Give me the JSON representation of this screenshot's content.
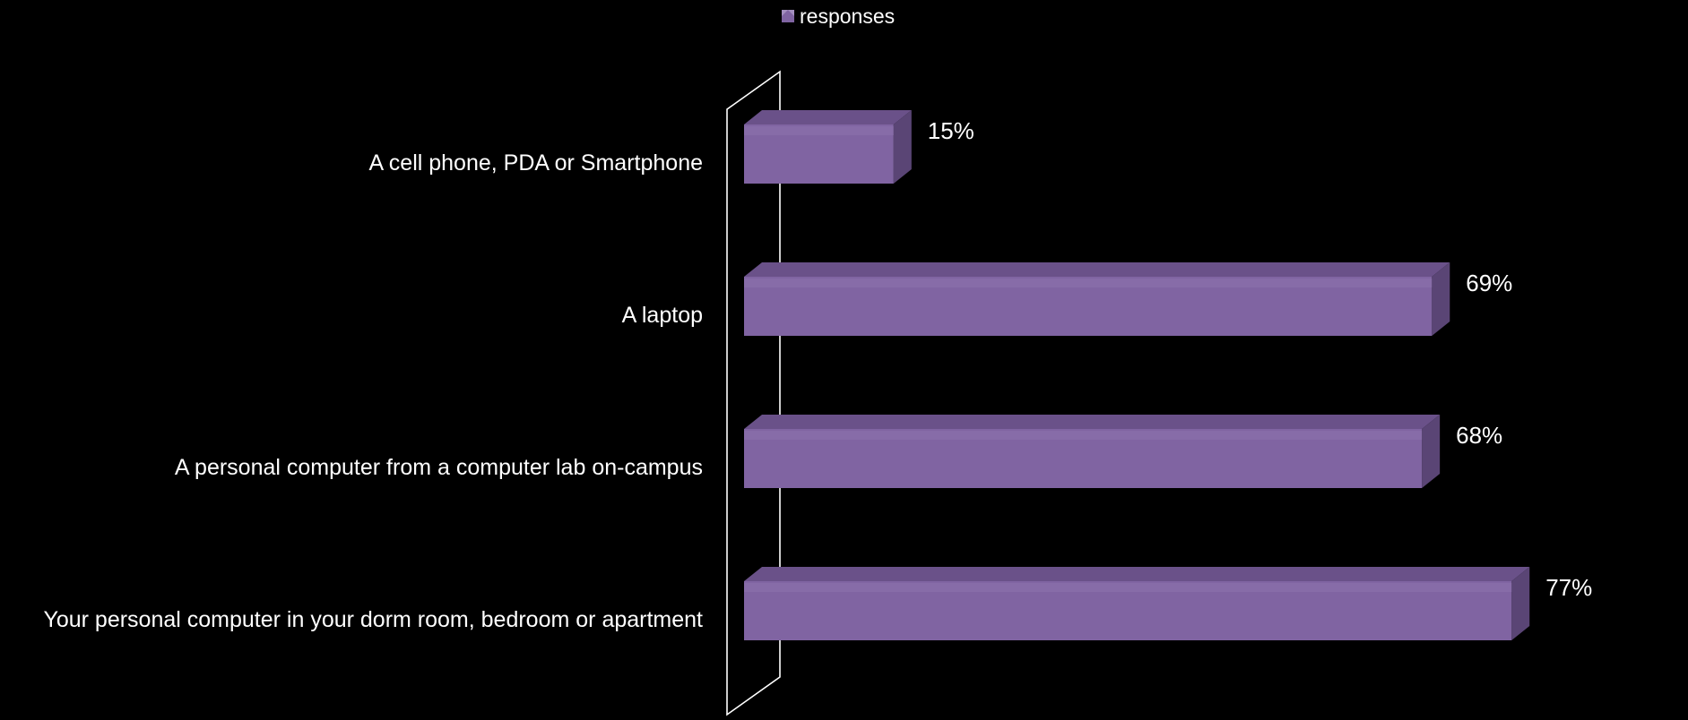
{
  "chart_data": {
    "type": "bar",
    "orientation": "horizontal",
    "three_d": true,
    "categories": [
      "A cell phone, PDA or Smartphone",
      "A laptop",
      "A personal computer from a computer lab on-campus",
      "Your personal computer in your dorm room, bedroom or apartment"
    ],
    "series": [
      {
        "name": "responses",
        "values": [
          15,
          69,
          68,
          77
        ],
        "data_labels": [
          "15%",
          "69%",
          "68%",
          "77%"
        ],
        "color": "#8064a2"
      }
    ],
    "xlim": [
      0,
      100
    ],
    "grid": false,
    "legend": "top"
  }
}
